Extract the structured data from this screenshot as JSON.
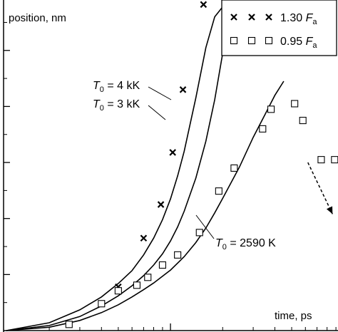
{
  "chart_data": {
    "type": "scatter",
    "ylabel": "position, nm",
    "xlabel": "time, ps",
    "xscale": "log",
    "xlim": [
      1.09,
      92.5
    ],
    "ylim": [
      0,
      5.9
    ],
    "grid": false,
    "legend_position": "top-right",
    "legend": [
      {
        "marker": "x-mark",
        "label_main": "1.30 ",
        "label_var": "F",
        "label_sub": "a"
      },
      {
        "marker": "open-square",
        "label_main": "0.95 ",
        "label_var": "F",
        "label_sub": "a"
      }
    ],
    "curve_labels": [
      {
        "var": "T",
        "sub": "0",
        "rest": " = 4 kK"
      },
      {
        "var": "T",
        "sub": "0",
        "rest": " = 3 kK"
      },
      {
        "var": "T",
        "sub": "0",
        "rest": " = 2590 K"
      }
    ],
    "series": [
      {
        "curve": "T0 = 4 kK",
        "x": [
          1.13,
          2.0,
          3.0,
          4.0,
          5.0,
          6.0,
          7.0,
          8.0,
          9.0,
          10.0,
          11.0,
          12.0,
          14.0,
          16.0,
          18.0,
          21.5
        ],
        "y": [
          0.0,
          0.14,
          0.37,
          0.6,
          0.84,
          1.07,
          1.35,
          1.65,
          1.98,
          2.35,
          2.76,
          3.2,
          4.15,
          5.05,
          5.6,
          5.9
        ]
      },
      {
        "curve": "T0 = 3 kK",
        "x": [
          1.13,
          2.0,
          3.0,
          4.0,
          5.0,
          6.0,
          7.0,
          8.0,
          9.0,
          10.0,
          11.0,
          12.0,
          14.0,
          16.0,
          18.0,
          20.0,
          22.5
        ],
        "y": [
          0.0,
          0.09,
          0.25,
          0.44,
          0.62,
          0.8,
          0.98,
          1.17,
          1.37,
          1.6,
          1.85,
          2.13,
          2.72,
          3.38,
          4.12,
          4.95,
          5.9
        ]
      },
      {
        "curve": "T0 = 2590 K",
        "x": [
          1.13,
          2.0,
          3.0,
          4.0,
          5.0,
          6.0,
          7.0,
          8.0,
          10.0,
          12.0,
          14.0,
          16.0,
          18.0,
          20.0,
          25.0,
          30.0,
          35.0,
          40.0,
          45.0
        ],
        "y": [
          0.0,
          0.06,
          0.18,
          0.32,
          0.46,
          0.6,
          0.73,
          0.85,
          1.08,
          1.32,
          1.57,
          1.83,
          2.1,
          2.36,
          2.92,
          3.45,
          3.85,
          4.2,
          4.45
        ]
      }
    ],
    "markers": [
      {
        "series": "1.30 Fa",
        "shape": "x-mark",
        "x": [
          5.0,
          7.0,
          8.8,
          10.3,
          11.8,
          15.5
        ],
        "y": [
          0.78,
          1.65,
          2.25,
          3.18,
          4.3,
          5.82
        ]
      },
      {
        "series": "0.95 Fa",
        "shape": "open-square",
        "x": [
          2.6,
          4.0,
          5.0,
          6.4,
          7.4,
          9.0,
          11.0,
          14.7,
          19.0,
          23.3,
          34.0,
          38.0,
          52.0,
          58.0,
          74.0,
          88.5
        ],
        "y": [
          0.11,
          0.48,
          0.71,
          0.81,
          0.95,
          1.17,
          1.35,
          1.75,
          2.49,
          2.9,
          3.6,
          3.95,
          4.05,
          3.75,
          3.05,
          3.05
        ]
      }
    ],
    "arrow": {
      "from": [
        62.0,
        3.0
      ],
      "to": [
        86.0,
        2.08
      ]
    }
  }
}
